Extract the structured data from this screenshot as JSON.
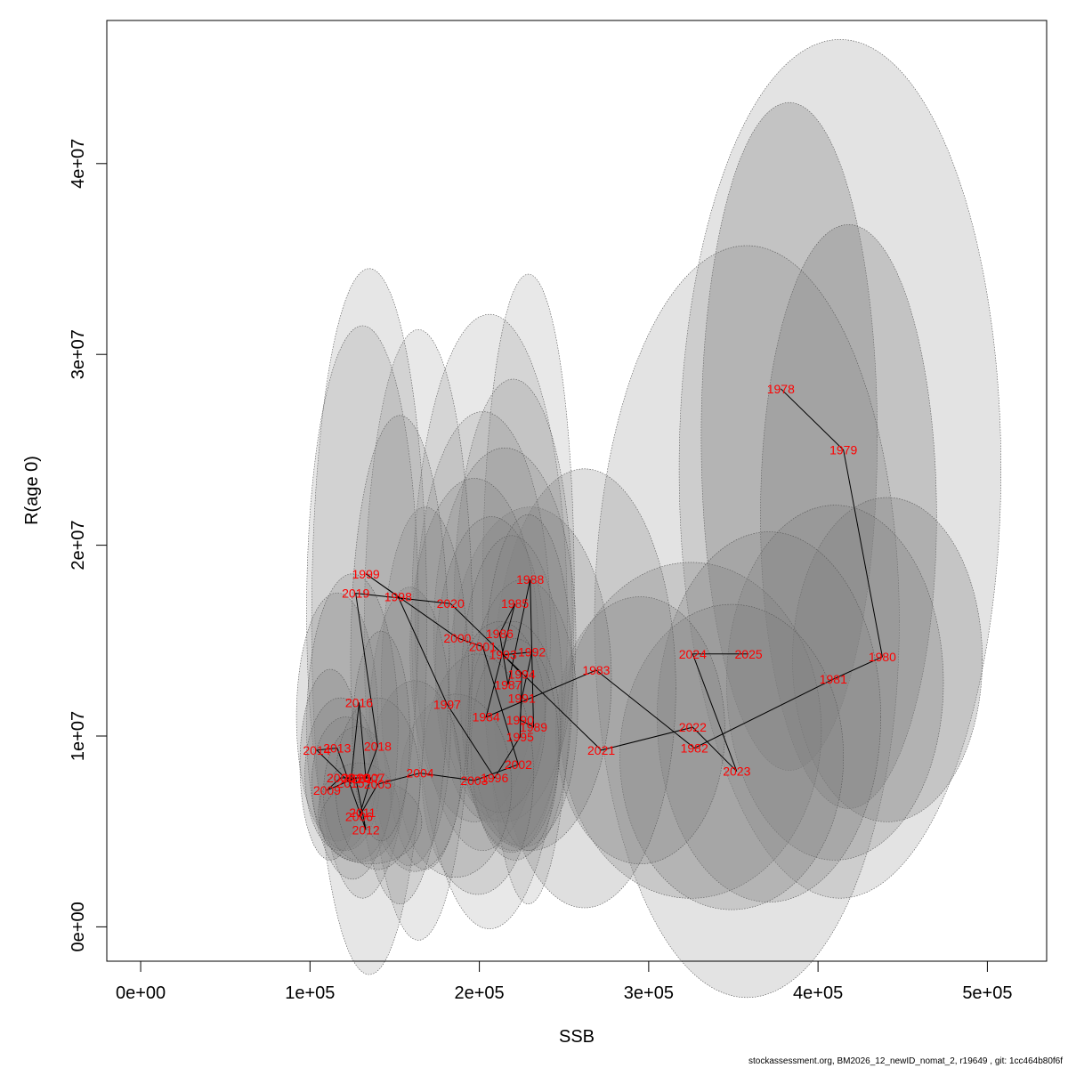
{
  "chart_data": {
    "type": "scatter",
    "title": "",
    "xlabel": "SSB",
    "ylabel": "R(age 0)",
    "xlim": [
      -20000,
      535000
    ],
    "ylim": [
      -1800000,
      47500000
    ],
    "x_ticks": [
      {
        "value": 0,
        "label": "0e+00"
      },
      {
        "value": 100000,
        "label": "1e+05"
      },
      {
        "value": 200000,
        "label": "2e+05"
      },
      {
        "value": 300000,
        "label": "3e+05"
      },
      {
        "value": 400000,
        "label": "4e+05"
      },
      {
        "value": 500000,
        "label": "5e+05"
      }
    ],
    "y_ticks": [
      {
        "value": 0,
        "label": "0e+00"
      },
      {
        "value": 10000000,
        "label": "1e+07"
      },
      {
        "value": 20000000,
        "label": "2e+07"
      },
      {
        "value": 30000000,
        "label": "3e+07"
      },
      {
        "value": 40000000,
        "label": "4e+07"
      }
    ],
    "point_color": "#ff0000",
    "line_color": "#000000",
    "ellipse_fill": "#808080",
    "points": [
      {
        "year": "1978",
        "ssb": 378000,
        "rec": 28200000
      },
      {
        "year": "1979",
        "ssb": 415000,
        "rec": 24990000
      },
      {
        "year": "1980",
        "ssb": 438000,
        "rec": 14150000
      },
      {
        "year": "1981",
        "ssb": 409000,
        "rec": 12980000
      },
      {
        "year": "1982",
        "ssb": 327000,
        "rec": 9370000
      },
      {
        "year": "1983",
        "ssb": 269000,
        "rec": 13450000
      },
      {
        "year": "1984",
        "ssb": 204000,
        "rec": 11000000
      },
      {
        "year": "1985",
        "ssb": 221000,
        "rec": 16940000
      },
      {
        "year": "1986",
        "ssb": 212000,
        "rec": 15370000
      },
      {
        "year": "1987",
        "ssb": 217000,
        "rec": 12690000
      },
      {
        "year": "1988",
        "ssb": 230000,
        "rec": 18200000
      },
      {
        "year": "1989",
        "ssb": 232000,
        "rec": 10470000
      },
      {
        "year": "1990",
        "ssb": 224000,
        "rec": 10840000
      },
      {
        "year": "1991",
        "ssb": 225000,
        "rec": 11980000
      },
      {
        "year": "1992",
        "ssb": 231000,
        "rec": 14400000
      },
      {
        "year": "1993",
        "ssb": 214000,
        "rec": 14260000
      },
      {
        "year": "1994",
        "ssb": 225000,
        "rec": 13240000
      },
      {
        "year": "1995",
        "ssb": 224000,
        "rec": 9950000
      },
      {
        "year": "1996",
        "ssb": 209000,
        "rec": 7810000
      },
      {
        "year": "1997",
        "ssb": 181000,
        "rec": 11660000
      },
      {
        "year": "1998",
        "ssb": 152000,
        "rec": 17300000
      },
      {
        "year": "1999",
        "ssb": 133000,
        "rec": 18500000
      },
      {
        "year": "2000",
        "ssb": 187000,
        "rec": 15140000
      },
      {
        "year": "2001",
        "ssb": 202000,
        "rec": 14680000
      },
      {
        "year": "2002",
        "ssb": 223000,
        "rec": 8510000
      },
      {
        "year": "2003",
        "ssb": 197000,
        "rec": 7670000
      },
      {
        "year": "2004",
        "ssb": 165000,
        "rec": 8060000
      },
      {
        "year": "2005",
        "ssb": 140000,
        "rec": 7480000
      },
      {
        "year": "2006",
        "ssb": 129000,
        "rec": 5770000
      },
      {
        "year": "2007",
        "ssb": 136000,
        "rec": 7810000
      },
      {
        "year": "2008",
        "ssb": 118000,
        "rec": 7810000
      },
      {
        "year": "2009",
        "ssb": 110000,
        "rec": 7160000
      },
      {
        "year": "2010",
        "ssb": 127000,
        "rec": 7810000
      },
      {
        "year": "2011",
        "ssb": 131000,
        "rec": 6000000
      },
      {
        "year": "2012",
        "ssb": 133000,
        "rec": 5080000
      },
      {
        "year": "2013",
        "ssb": 116000,
        "rec": 9370000
      },
      {
        "year": "2014",
        "ssb": 104000,
        "rec": 9260000
      },
      {
        "year": "2015",
        "ssb": 124000,
        "rec": 7520000
      },
      {
        "year": "2016",
        "ssb": 129000,
        "rec": 11760000
      },
      {
        "year": "2017",
        "ssb": 133000,
        "rec": 7760000
      },
      {
        "year": "2018",
        "ssb": 140000,
        "rec": 9470000
      },
      {
        "year": "2019",
        "ssb": 127000,
        "rec": 17480000
      },
      {
        "year": "2020",
        "ssb": 183000,
        "rec": 16940000
      },
      {
        "year": "2021",
        "ssb": 272000,
        "rec": 9260000
      },
      {
        "year": "2022",
        "ssb": 326000,
        "rec": 10460000
      },
      {
        "year": "2023",
        "ssb": 352000,
        "rec": 8150000
      },
      {
        "year": "2024",
        "ssb": 326000,
        "rec": 14300000
      },
      {
        "year": "2025",
        "ssb": 359000,
        "rec": 14300000
      }
    ],
    "ellipses": [
      {
        "cx": 413000,
        "cy": 24000000,
        "rx": 95000,
        "ry": 22500000,
        "shade": 0.22
      },
      {
        "cx": 383000,
        "cy": 25700000,
        "rx": 52000,
        "ry": 17500000,
        "shade": 0.32
      },
      {
        "cx": 418000,
        "cy": 21500000,
        "rx": 52000,
        "ry": 15300000,
        "shade": 0.32
      },
      {
        "cx": 358000,
        "cy": 16000000,
        "rx": 90000,
        "ry": 19700000,
        "shade": 0.22
      },
      {
        "cx": 441000,
        "cy": 14000000,
        "rx": 56000,
        "ry": 8500000,
        "shade": 0.3
      },
      {
        "cx": 410000,
        "cy": 12800000,
        "rx": 64000,
        "ry": 9300000,
        "shade": 0.28
      },
      {
        "cx": 325000,
        "cy": 10300000,
        "rx": 77000,
        "ry": 8800000,
        "shade": 0.28
      },
      {
        "cx": 371000,
        "cy": 11000000,
        "rx": 66000,
        "ry": 9700000,
        "shade": 0.28
      },
      {
        "cx": 349000,
        "cy": 8900000,
        "rx": 66000,
        "ry": 8000000,
        "shade": 0.28
      },
      {
        "cx": 295000,
        "cy": 10300000,
        "rx": 50000,
        "ry": 7000000,
        "shade": 0.28
      },
      {
        "cx": 262000,
        "cy": 12500000,
        "rx": 54000,
        "ry": 11500000,
        "shade": 0.25
      },
      {
        "cx": 230000,
        "cy": 13000000,
        "rx": 48000,
        "ry": 9000000,
        "shade": 0.25
      },
      {
        "cx": 206000,
        "cy": 16000000,
        "rx": 46000,
        "ry": 16100000,
        "shade": 0.18
      },
      {
        "cx": 229000,
        "cy": 17700000,
        "rx": 27000,
        "ry": 16500000,
        "shade": 0.18
      },
      {
        "cx": 220000,
        "cy": 16500000,
        "rx": 35000,
        "ry": 12200000,
        "shade": 0.2
      },
      {
        "cx": 202000,
        "cy": 15500000,
        "rx": 40000,
        "ry": 11500000,
        "shade": 0.2
      },
      {
        "cx": 215000,
        "cy": 15300000,
        "rx": 42000,
        "ry": 9800000,
        "shade": 0.22
      },
      {
        "cx": 197000,
        "cy": 14500000,
        "rx": 38000,
        "ry": 9000000,
        "shade": 0.22
      },
      {
        "cx": 207000,
        "cy": 13500000,
        "rx": 33000,
        "ry": 8000000,
        "shade": 0.24
      },
      {
        "cx": 219000,
        "cy": 12200000,
        "rx": 30000,
        "ry": 8300000,
        "shade": 0.24
      },
      {
        "cx": 226000,
        "cy": 11200000,
        "rx": 32000,
        "ry": 7000000,
        "shade": 0.24
      },
      {
        "cx": 229000,
        "cy": 12800000,
        "rx": 26000,
        "ry": 8800000,
        "shade": 0.24
      },
      {
        "cx": 220000,
        "cy": 10000000,
        "rx": 28000,
        "ry": 6000000,
        "shade": 0.24
      },
      {
        "cx": 212000,
        "cy": 11000000,
        "rx": 27000,
        "ry": 5000000,
        "shade": 0.26
      },
      {
        "cx": 221000,
        "cy": 9300000,
        "rx": 26000,
        "ry": 5800000,
        "shade": 0.24
      },
      {
        "cx": 199000,
        "cy": 8000000,
        "rx": 33000,
        "ry": 6300000,
        "shade": 0.22
      },
      {
        "cx": 186000,
        "cy": 7400000,
        "rx": 33000,
        "ry": 4800000,
        "shade": 0.22
      },
      {
        "cx": 164000,
        "cy": 15300000,
        "rx": 32000,
        "ry": 16000000,
        "shade": 0.18
      },
      {
        "cx": 168000,
        "cy": 12500000,
        "rx": 26000,
        "ry": 9500000,
        "shade": 0.22
      },
      {
        "cx": 159000,
        "cy": 10500000,
        "rx": 24000,
        "ry": 7300000,
        "shade": 0.24
      },
      {
        "cx": 162000,
        "cy": 7900000,
        "rx": 27000,
        "ry": 5000000,
        "shade": 0.24
      },
      {
        "cx": 135000,
        "cy": 16000000,
        "rx": 34000,
        "ry": 18500000,
        "shade": 0.2
      },
      {
        "cx": 131000,
        "cy": 16500000,
        "rx": 33000,
        "ry": 15000000,
        "shade": 0.2
      },
      {
        "cx": 153000,
        "cy": 14000000,
        "rx": 29000,
        "ry": 12800000,
        "shade": 0.22
      },
      {
        "cx": 116000,
        "cy": 11000000,
        "rx": 24000,
        "ry": 6500000,
        "shade": 0.24
      },
      {
        "cx": 125000,
        "cy": 10500000,
        "rx": 27000,
        "ry": 8000000,
        "shade": 0.22
      },
      {
        "cx": 112000,
        "cy": 8500000,
        "rx": 18000,
        "ry": 5000000,
        "shade": 0.26
      },
      {
        "cx": 118000,
        "cy": 8000000,
        "rx": 21000,
        "ry": 4000000,
        "shade": 0.26
      },
      {
        "cx": 121000,
        "cy": 7500000,
        "rx": 20000,
        "ry": 3500000,
        "shade": 0.26
      },
      {
        "cx": 128000,
        "cy": 7000000,
        "rx": 20000,
        "ry": 3500000,
        "shade": 0.26
      },
      {
        "cx": 129000,
        "cy": 6000000,
        "rx": 24000,
        "ry": 2600000,
        "shade": 0.26
      },
      {
        "cx": 136000,
        "cy": 5500000,
        "rx": 30000,
        "ry": 2200000,
        "shade": 0.24
      },
      {
        "cx": 140000,
        "cy": 7500000,
        "rx": 25000,
        "ry": 4500000,
        "shade": 0.24
      },
      {
        "cx": 142000,
        "cy": 10000000,
        "rx": 17000,
        "ry": 5500000,
        "shade": 0.24
      }
    ]
  },
  "footer": "stockassessment.org, BM2026_12_newID_nomat_2, r19649 , git: 1cc464b80f6f"
}
